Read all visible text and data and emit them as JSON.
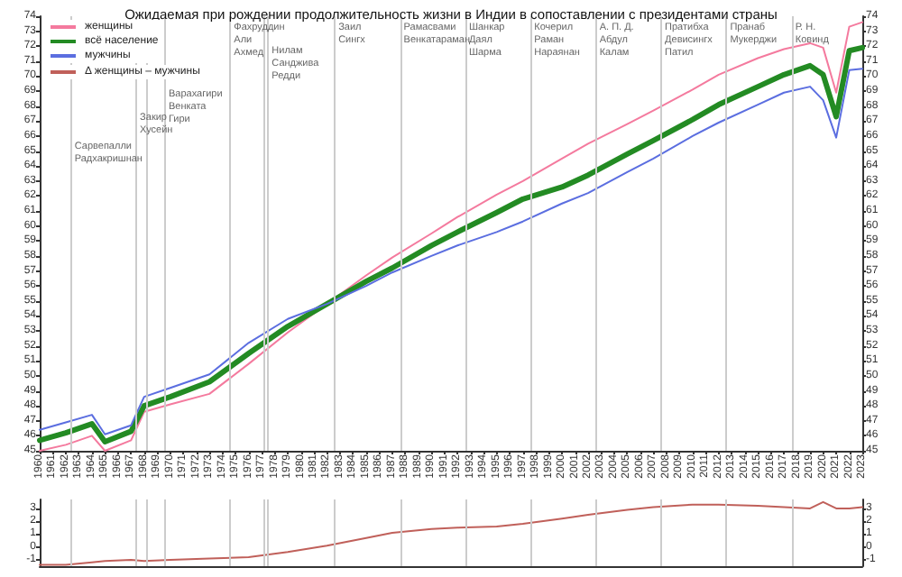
{
  "chart_data": [
    {
      "type": "line",
      "title": "Ожидаемая при рождении продолжительность жизни в Индии в сопоставлении с президентами страны",
      "x": [
        1960,
        1962,
        1964,
        1965,
        1967,
        1968,
        1970,
        1973,
        1976,
        1979,
        1982,
        1985,
        1987,
        1990,
        1992,
        1995,
        1997,
        2000,
        2002,
        2005,
        2007,
        2010,
        2012,
        2015,
        2017,
        2019,
        2020,
        2021,
        2022,
        2023
      ],
      "series": [
        {
          "name": "женщины",
          "color": "#f47a9e",
          "values": [
            45.0,
            45.4,
            46.0,
            45.0,
            45.7,
            47.6,
            48.1,
            48.8,
            50.8,
            52.9,
            54.8,
            56.7,
            57.9,
            59.5,
            60.6,
            62.1,
            63.0,
            64.5,
            65.5,
            66.8,
            67.7,
            69.1,
            70.1,
            71.2,
            71.8,
            72.2,
            71.9,
            68.9,
            73.3,
            73.6
          ]
        },
        {
          "name": "всё население",
          "color": "#238b23",
          "values": [
            45.7,
            46.2,
            46.8,
            45.6,
            46.3,
            48.0,
            48.6,
            49.6,
            51.5,
            53.3,
            54.8,
            56.3,
            57.2,
            58.7,
            59.6,
            60.9,
            61.8,
            62.6,
            63.4,
            64.8,
            65.7,
            67.1,
            68.1,
            69.3,
            70.1,
            70.7,
            70.1,
            67.3,
            71.7,
            71.9
          ]
        },
        {
          "name": "мужчины",
          "color": "#5b6ee0",
          "values": [
            46.4,
            46.9,
            47.4,
            46.1,
            46.7,
            48.6,
            49.2,
            50.1,
            52.2,
            53.8,
            54.8,
            56.0,
            56.9,
            58.0,
            58.7,
            59.6,
            60.3,
            61.5,
            62.2,
            63.6,
            64.5,
            66.0,
            66.9,
            68.1,
            68.9,
            69.3,
            68.4,
            65.9,
            70.4,
            70.5
          ]
        }
      ],
      "xlim": [
        1960,
        2023
      ],
      "xticks": [
        1960,
        1961,
        1962,
        1963,
        1964,
        1965,
        1966,
        1967,
        1968,
        1969,
        1970,
        1971,
        1972,
        1973,
        1974,
        1975,
        1976,
        1977,
        1978,
        1979,
        1980,
        1981,
        1982,
        1983,
        1984,
        1985,
        1986,
        1987,
        1988,
        1989,
        1990,
        1991,
        1992,
        1993,
        1994,
        1995,
        1996,
        1997,
        1998,
        1999,
        2000,
        2001,
        2002,
        2003,
        2004,
        2005,
        2006,
        2007,
        2008,
        2009,
        2010,
        2011,
        2012,
        2013,
        2014,
        2015,
        2016,
        2017,
        2018,
        2019,
        2020,
        2021,
        2022,
        2023
      ],
      "ylim": [
        45,
        74
      ],
      "yticks": [
        45,
        46,
        47,
        48,
        49,
        50,
        51,
        52,
        53,
        54,
        55,
        56,
        57,
        58,
        59,
        60,
        61,
        62,
        63,
        64,
        65,
        66,
        67,
        68,
        69,
        70,
        71,
        72,
        73,
        74
      ],
      "y2lim": [
        45,
        74
      ],
      "y2ticks": [
        45,
        46,
        47,
        48,
        49,
        50,
        51,
        52,
        53,
        54,
        55,
        56,
        57,
        58,
        59,
        60,
        61,
        62,
        63,
        64,
        65,
        66,
        67,
        68,
        69,
        70,
        71,
        72,
        73,
        74
      ],
      "ref_lines": [
        {
          "axis": "x",
          "value": 1962.4,
          "label": "Сарвепалли\nРадхакришнан",
          "color": "#cccccc"
        },
        {
          "axis": "x",
          "value": 1967.4,
          "label": "Закир\nХусейн",
          "color": "#cccccc"
        },
        {
          "axis": "x",
          "value": 1968.2,
          "label": null,
          "color": "#cccccc"
        },
        {
          "axis": "x",
          "value": 1969.6,
          "label": "Варахагири\nВенката\nГири",
          "color": "#cccccc"
        },
        {
          "axis": "x",
          "value": 1974.6,
          "label": "Фахруддин\nАли\nАхмед",
          "color": "#cccccc"
        },
        {
          "axis": "x",
          "value": 1977.1,
          "label": null,
          "color": "#cccccc"
        },
        {
          "axis": "x",
          "value": 1977.5,
          "label": "Нилам\nСанджива\nРедди",
          "color": "#cccccc"
        },
        {
          "axis": "x",
          "value": 1982.6,
          "label": "Заил\nСингх",
          "color": "#cccccc"
        },
        {
          "axis": "x",
          "value": 1987.6,
          "label": "Рамасвами\nВенкатараман",
          "color": "#cccccc"
        },
        {
          "axis": "x",
          "value": 1992.6,
          "label": "Шанкар\nДаял\nШарма",
          "color": "#cccccc"
        },
        {
          "axis": "x",
          "value": 1997.6,
          "label": "Кочерил\nРаман\nНараянан",
          "color": "#cccccc"
        },
        {
          "axis": "x",
          "value": 2002.6,
          "label": "А. П. Д.\nАбдул\nКалам",
          "color": "#cccccc"
        },
        {
          "axis": "x",
          "value": 2007.6,
          "label": "Пратибха\nДевисингх\nПатил",
          "color": "#cccccc"
        },
        {
          "axis": "x",
          "value": 2012.6,
          "label": "Пранаб\nМукерджи",
          "color": "#cccccc"
        },
        {
          "axis": "x",
          "value": 2017.6,
          "label": "Р. Н.\nКовинд",
          "color": "#cccccc"
        }
      ],
      "grid": false,
      "legend": "top left",
      "marker": "none",
      "line_style": "solid"
    },
    {
      "type": "line",
      "x": [
        1960,
        1962,
        1964,
        1965,
        1967,
        1968,
        1970,
        1973,
        1976,
        1979,
        1982,
        1985,
        1987,
        1990,
        1992,
        1995,
        1997,
        2000,
        2002,
        2005,
        2007,
        2010,
        2012,
        2015,
        2017,
        2019,
        2020,
        2021,
        2022,
        2023
      ],
      "series": [
        {
          "name": "Δ женщины – мужчины",
          "color": "#c0605a",
          "values": [
            -1.4,
            -1.4,
            -1.2,
            -1.1,
            -1.0,
            -1.1,
            -1.0,
            -0.9,
            -0.8,
            -0.4,
            0.1,
            0.7,
            1.1,
            1.4,
            1.5,
            1.6,
            1.8,
            2.2,
            2.5,
            2.9,
            3.1,
            3.3,
            3.3,
            3.2,
            3.1,
            3.0,
            3.5,
            3.0,
            3.0,
            3.1
          ]
        }
      ],
      "xlim": [
        1960,
        2023
      ],
      "ylim": [
        -1.5,
        3.7
      ],
      "yticks": [
        -1,
        0,
        1,
        2,
        3
      ],
      "y2lim": [
        -1.5,
        3.7
      ],
      "y2ticks": [
        -1,
        0,
        1,
        2,
        3
      ],
      "ref_lines": [
        {
          "axis": "x",
          "value": 1962.4,
          "label": null,
          "color": "#cccccc"
        },
        {
          "axis": "x",
          "value": 1967.4,
          "label": null,
          "color": "#cccccc"
        },
        {
          "axis": "x",
          "value": 1968.2,
          "label": null,
          "color": "#cccccc"
        },
        {
          "axis": "x",
          "value": 1969.6,
          "label": null,
          "color": "#cccccc"
        },
        {
          "axis": "x",
          "value": 1974.6,
          "label": null,
          "color": "#cccccc"
        },
        {
          "axis": "x",
          "value": 1977.1,
          "label": null,
          "color": "#cccccc"
        },
        {
          "axis": "x",
          "value": 1977.5,
          "label": null,
          "color": "#cccccc"
        },
        {
          "axis": "x",
          "value": 1982.6,
          "label": null,
          "color": "#cccccc"
        },
        {
          "axis": "x",
          "value": 1987.6,
          "label": null,
          "color": "#cccccc"
        },
        {
          "axis": "x",
          "value": 1992.6,
          "label": null,
          "color": "#cccccc"
        },
        {
          "axis": "x",
          "value": 1997.6,
          "label": null,
          "color": "#cccccc"
        },
        {
          "axis": "x",
          "value": 2002.6,
          "label": null,
          "color": "#cccccc"
        },
        {
          "axis": "x",
          "value": 2007.6,
          "label": null,
          "color": "#cccccc"
        },
        {
          "axis": "x",
          "value": 2012.6,
          "label": null,
          "color": "#cccccc"
        },
        {
          "axis": "x",
          "value": 2017.6,
          "label": null,
          "color": "#cccccc"
        }
      ],
      "grid": false,
      "legend": "top left",
      "marker": "none",
      "line_style": "solid",
      "tick_labels": "y"
    }
  ]
}
